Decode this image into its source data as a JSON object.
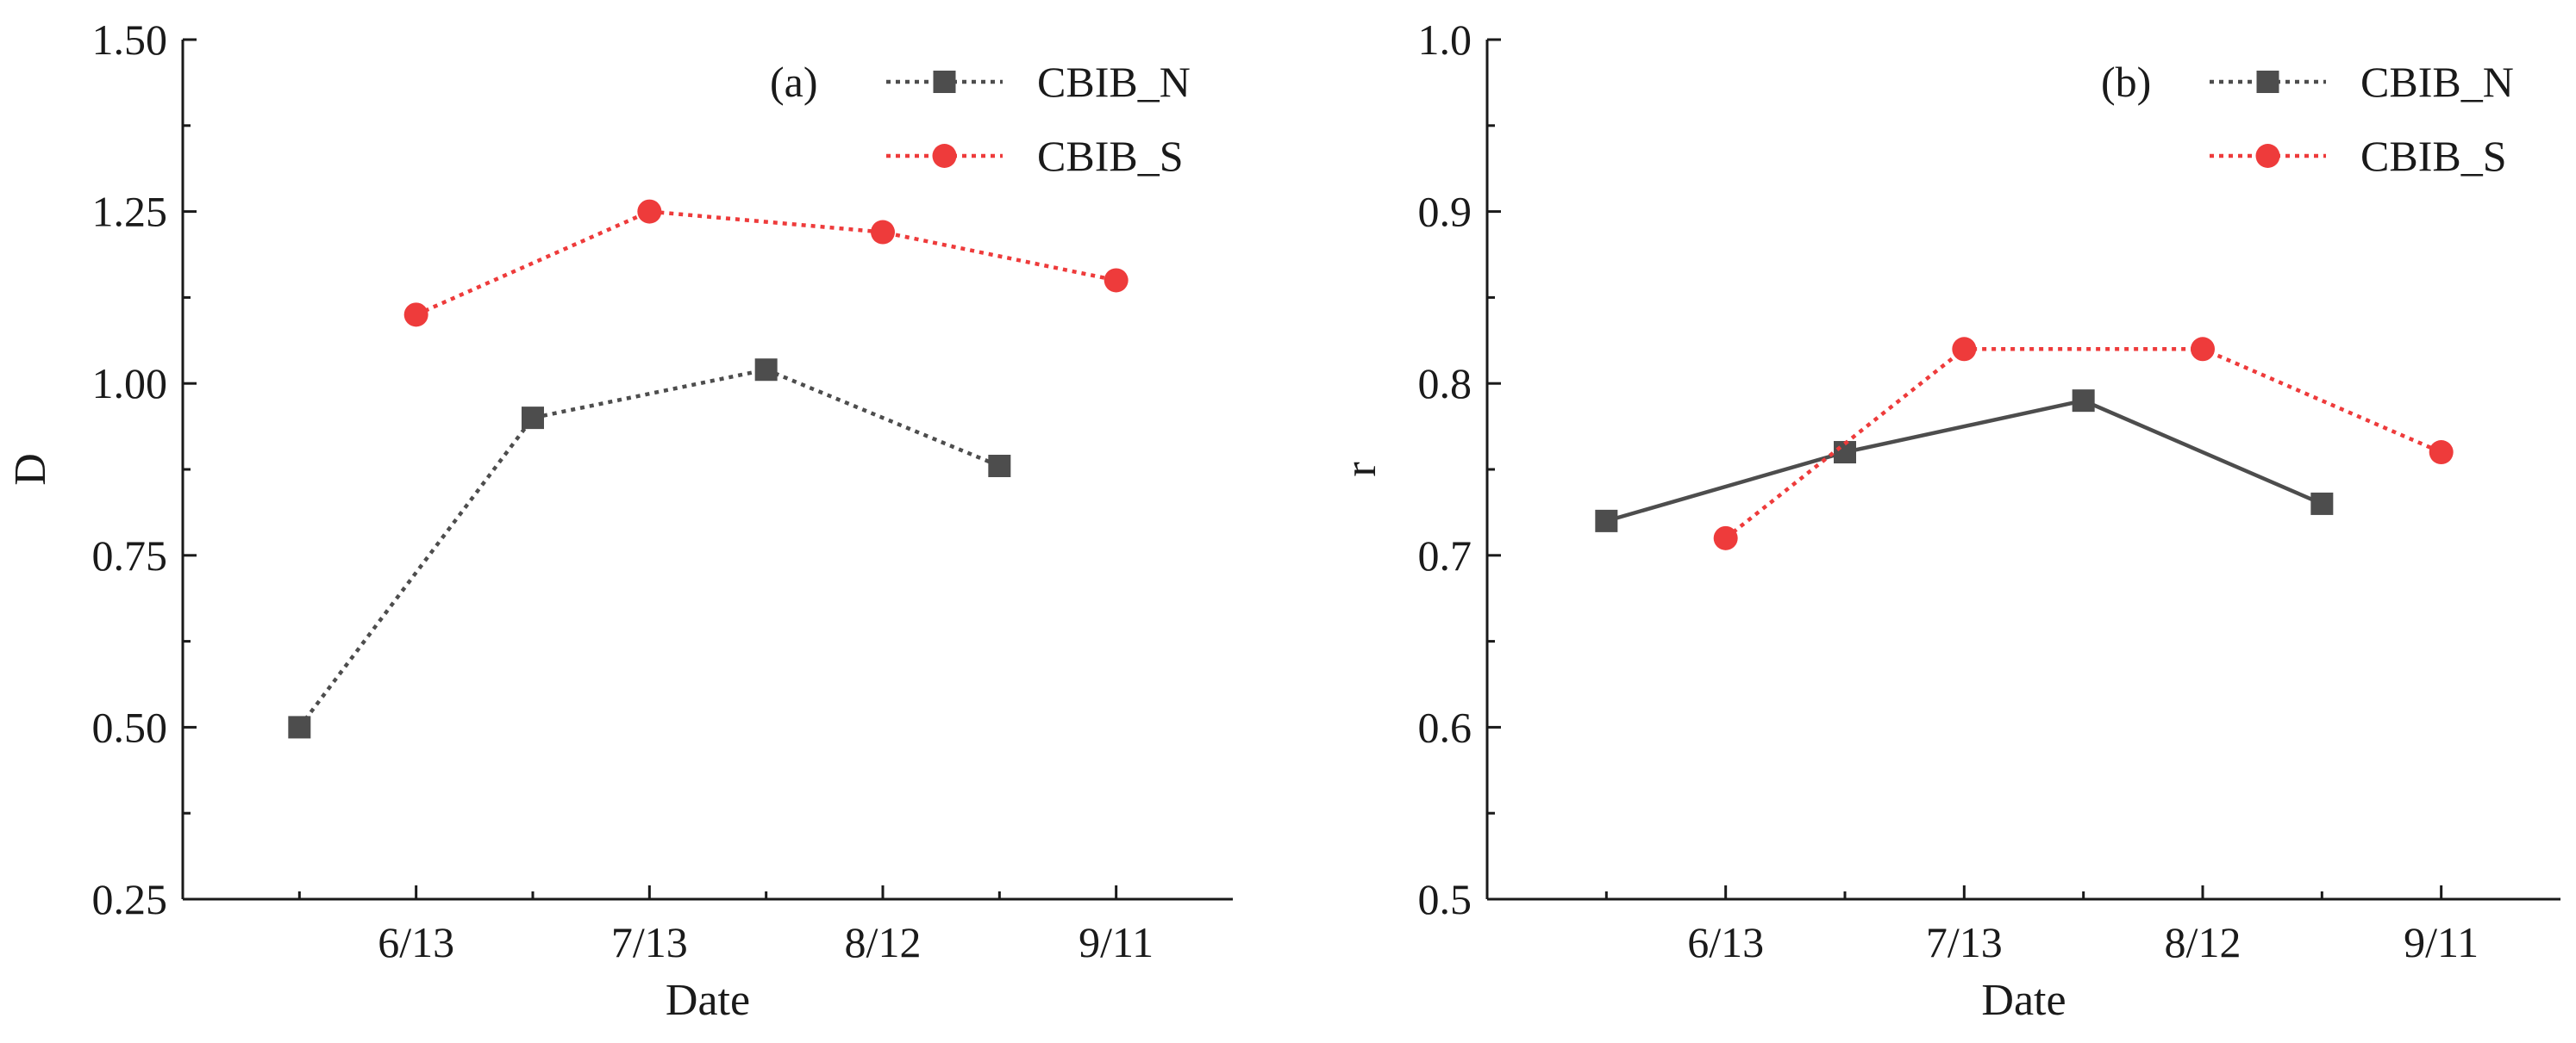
{
  "chart_data": [
    {
      "type": "line",
      "panel_label": "(a)",
      "xlabel": "Date",
      "ylabel": "D",
      "ylim": [
        0.25,
        1.5
      ],
      "yticks": [
        0.25,
        0.5,
        0.75,
        1.0,
        1.25,
        1.5
      ],
      "ytick_labels": [
        "0.25",
        "0.50",
        "0.75",
        "1.00",
        "1.25",
        "1.50"
      ],
      "xlim": [
        0,
        9
      ],
      "xticks": [
        2,
        4,
        6,
        8
      ],
      "xtick_labels": [
        "6/13",
        "7/13",
        "8/12",
        "9/11"
      ],
      "legend_position": "top-right",
      "series": [
        {
          "name": "CBIB_N",
          "color": "#4d4d4d",
          "marker": "square",
          "line_style": "dotted",
          "x": [
            1,
            3,
            5,
            7
          ],
          "values": [
            0.5,
            0.95,
            1.02,
            0.88
          ]
        },
        {
          "name": "CBIB_S",
          "color": "#ee3b3b",
          "marker": "circle",
          "line_style": "dotted",
          "x": [
            2,
            4,
            6,
            8
          ],
          "values": [
            1.1,
            1.25,
            1.22,
            1.15
          ]
        }
      ]
    },
    {
      "type": "line",
      "panel_label": "(b)",
      "xlabel": "Date",
      "ylabel": "r",
      "ylim": [
        0.5,
        1.0
      ],
      "yticks": [
        0.5,
        0.6,
        0.7,
        0.8,
        0.9,
        1.0
      ],
      "ytick_labels": [
        "0.5",
        "0.6",
        "0.7",
        "0.8",
        "0.9",
        "1.0"
      ],
      "xlim": [
        0,
        9
      ],
      "xticks": [
        2,
        4,
        6,
        8
      ],
      "xtick_labels": [
        "6/13",
        "7/13",
        "8/12",
        "9/11"
      ],
      "legend_position": "top-right",
      "series": [
        {
          "name": "CBIB_N",
          "color": "#4d4d4d",
          "marker": "square",
          "line_style": "solid",
          "x": [
            1,
            3,
            5,
            7
          ],
          "values": [
            0.72,
            0.76,
            0.79,
            0.73
          ]
        },
        {
          "name": "CBIB_S",
          "color": "#ee3b3b",
          "marker": "circle",
          "line_style": "dotted",
          "x": [
            2,
            4,
            6,
            8
          ],
          "values": [
            0.71,
            0.82,
            0.82,
            0.76
          ]
        }
      ]
    }
  ]
}
